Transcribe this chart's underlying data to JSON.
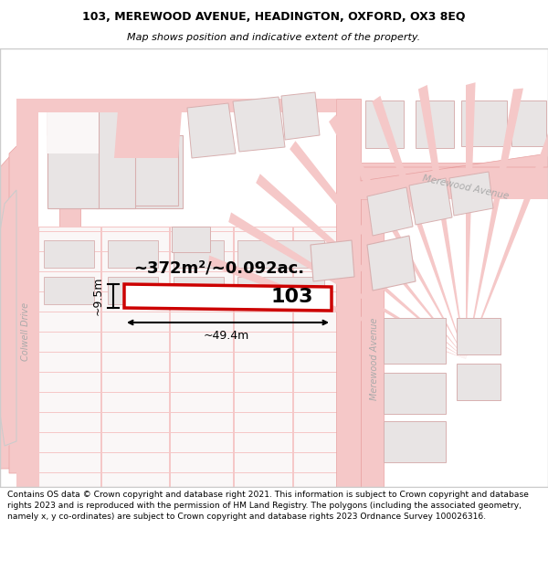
{
  "title_line1": "103, MEREWOOD AVENUE, HEADINGTON, OXFORD, OX3 8EQ",
  "title_line2": "Map shows position and indicative extent of the property.",
  "footer_text": "Contains OS data © Crown copyright and database right 2021. This information is subject to Crown copyright and database rights 2023 and is reproduced with the permission of HM Land Registry. The polygons (including the associated geometry, namely x, y co-ordinates) are subject to Crown copyright and database rights 2023 Ordnance Survey 100026316.",
  "area_label": "~372m²/~0.092ac.",
  "width_label": "~49.4m",
  "height_label": "~9.5m",
  "plot_number": "103",
  "map_bg": "#faf7f7",
  "road_color": "#f5c8c8",
  "road_edge": "#e8a0a0",
  "building_fill": "#e8e4e4",
  "building_edge": "#d8b0b0",
  "highlight_color": "#cc0000",
  "street_label_color": "#aaaaaa",
  "dim_color": "#000000",
  "border_color": "#cccccc",
  "title_fontsize": 9,
  "subtitle_fontsize": 8,
  "footer_fontsize": 6.6
}
